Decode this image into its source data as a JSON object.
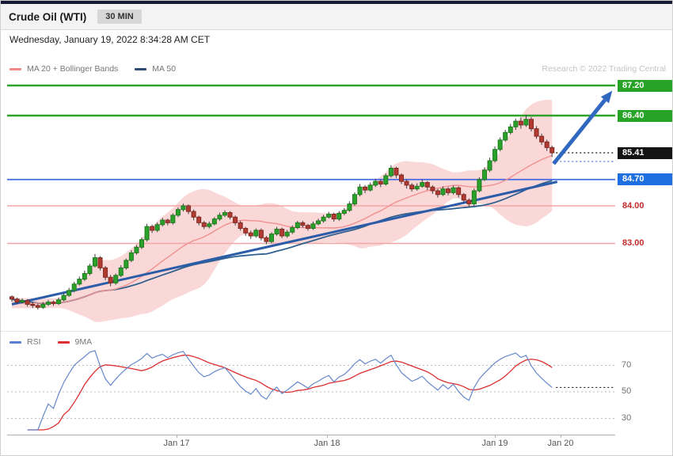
{
  "header": {
    "title": "Crude Oil (WTI)",
    "timeframe_badge": "30 MIN",
    "timestamp": "Wednesday, January 19, 2022 8:34:28 AM CET"
  },
  "legend": {
    "ma20_label": "MA 20 + Bollinger Bands",
    "ma50_label": "MA 50",
    "research_credit": "Research © 2022 Trading Central"
  },
  "rsi_legend": {
    "rsi_label": "RSI",
    "ma9_label": "9MA"
  },
  "colors": {
    "up_candle": "#2aa12a",
    "down_candle": "#b23a30",
    "bollinger_band": "#f69e9e",
    "ma20": "#f09090",
    "ma50": "#30608f",
    "trendline": "#2b5ca8",
    "arrow": "#3068c0",
    "resistance_green": "#2da32d",
    "pivot_blue": "#4169e1",
    "support_pink": "#f2a6a6"
  },
  "chart_data": {
    "type": "candlestick",
    "title": "Crude Oil (WTI)",
    "interval": "30 MIN",
    "current_price": 85.41,
    "x_axis_labels": [
      "Jan 17",
      "Jan 18",
      "Jan 19",
      "Jan 20"
    ],
    "y_axis_visible_range": [
      81.0,
      87.5
    ],
    "rsi_levels": [
      70,
      50,
      30
    ],
    "indicators": {
      "ma": 20,
      "bollinger_stddev": 2,
      "ma_slow": 50,
      "rsi": 14,
      "rsi_ma": 9
    },
    "levels": [
      {
        "price": 87.2,
        "label": "87.20",
        "style": "green-badge",
        "line_color": "#2da32d"
      },
      {
        "price": 86.4,
        "label": "86.40",
        "style": "green-badge",
        "line_color": "#2da32d"
      },
      {
        "price": 85.41,
        "label": "85.41",
        "style": "black-badge",
        "line_color": null
      },
      {
        "price": 84.7,
        "label": "84.70",
        "style": "blue-badge",
        "line_color": "#4169e1"
      },
      {
        "price": 84.0,
        "label": "84.00",
        "style": "red-text",
        "line_color": "#f2a6a6"
      },
      {
        "price": 83.0,
        "label": "83.00",
        "style": "red-text",
        "line_color": "#f2a6a6"
      }
    ],
    "trendline": {
      "start_index": 0,
      "start_price": 81.38,
      "end_index": 105,
      "end_price": 84.64
    },
    "arrow": {
      "from_index": 104.3,
      "from_price": 85.12,
      "to_index": 115.6,
      "to_price": 87.06
    },
    "projection_dotted_price": 85.18,
    "candles": [
      [
        81.58,
        81.62,
        81.45,
        81.52
      ],
      [
        81.52,
        81.56,
        81.38,
        81.44
      ],
      [
        81.44,
        81.54,
        81.4,
        81.48
      ],
      [
        81.48,
        81.52,
        81.32,
        81.38
      ],
      [
        81.38,
        81.44,
        81.28,
        81.35
      ],
      [
        81.35,
        81.4,
        81.24,
        81.3
      ],
      [
        81.3,
        81.44,
        81.26,
        81.38
      ],
      [
        81.38,
        81.5,
        81.34,
        81.44
      ],
      [
        81.44,
        81.48,
        81.34,
        81.4
      ],
      [
        81.4,
        81.56,
        81.36,
        81.5
      ],
      [
        81.5,
        81.68,
        81.46,
        81.62
      ],
      [
        81.62,
        81.82,
        81.58,
        81.75
      ],
      [
        81.75,
        81.98,
        81.7,
        81.92
      ],
      [
        81.92,
        82.12,
        81.88,
        82.05
      ],
      [
        82.05,
        82.28,
        82.0,
        82.2
      ],
      [
        82.2,
        82.46,
        82.15,
        82.4
      ],
      [
        82.4,
        82.72,
        82.36,
        82.62
      ],
      [
        82.62,
        82.66,
        82.28,
        82.35
      ],
      [
        82.35,
        82.4,
        82.02,
        82.1
      ],
      [
        82.1,
        82.16,
        81.86,
        81.95
      ],
      [
        81.95,
        82.2,
        81.9,
        82.15
      ],
      [
        82.15,
        82.42,
        82.1,
        82.35
      ],
      [
        82.35,
        82.6,
        82.3,
        82.55
      ],
      [
        82.55,
        82.82,
        82.5,
        82.75
      ],
      [
        82.75,
        82.96,
        82.7,
        82.9
      ],
      [
        82.9,
        83.16,
        82.85,
        83.1
      ],
      [
        83.1,
        83.52,
        83.05,
        83.45
      ],
      [
        83.45,
        83.5,
        83.28,
        83.35
      ],
      [
        83.35,
        83.56,
        83.3,
        83.5
      ],
      [
        83.5,
        83.68,
        83.45,
        83.62
      ],
      [
        83.62,
        83.66,
        83.48,
        83.55
      ],
      [
        83.55,
        83.8,
        83.5,
        83.75
      ],
      [
        83.75,
        83.96,
        83.7,
        83.9
      ],
      [
        83.9,
        84.06,
        83.85,
        84.0
      ],
      [
        84.0,
        84.04,
        83.78,
        83.85
      ],
      [
        83.85,
        83.9,
        83.62,
        83.7
      ],
      [
        83.7,
        83.74,
        83.48,
        83.55
      ],
      [
        83.55,
        83.6,
        83.38,
        83.45
      ],
      [
        83.45,
        83.58,
        83.4,
        83.52
      ],
      [
        83.52,
        83.7,
        83.48,
        83.65
      ],
      [
        83.65,
        83.82,
        83.6,
        83.75
      ],
      [
        83.75,
        83.88,
        83.7,
        83.82
      ],
      [
        83.82,
        83.86,
        83.64,
        83.7
      ],
      [
        83.7,
        83.74,
        83.48,
        83.55
      ],
      [
        83.55,
        83.6,
        83.34,
        83.4
      ],
      [
        83.4,
        83.44,
        83.2,
        83.28
      ],
      [
        83.28,
        83.34,
        83.12,
        83.2
      ],
      [
        83.2,
        83.4,
        83.15,
        83.35
      ],
      [
        83.35,
        83.4,
        83.08,
        83.15
      ],
      [
        83.15,
        83.2,
        82.98,
        83.05
      ],
      [
        83.05,
        83.3,
        83.0,
        83.25
      ],
      [
        83.25,
        83.44,
        83.2,
        83.38
      ],
      [
        83.38,
        83.42,
        83.14,
        83.2
      ],
      [
        83.2,
        83.36,
        83.15,
        83.3
      ],
      [
        83.3,
        83.48,
        83.25,
        83.42
      ],
      [
        83.42,
        83.6,
        83.38,
        83.55
      ],
      [
        83.55,
        83.6,
        83.42,
        83.48
      ],
      [
        83.48,
        83.52,
        83.34,
        83.4
      ],
      [
        83.4,
        83.58,
        83.36,
        83.52
      ],
      [
        83.52,
        83.66,
        83.48,
        83.6
      ],
      [
        83.6,
        83.76,
        83.55,
        83.7
      ],
      [
        83.7,
        83.84,
        83.66,
        83.78
      ],
      [
        83.78,
        83.82,
        83.58,
        83.65
      ],
      [
        83.65,
        83.86,
        83.6,
        83.8
      ],
      [
        83.8,
        83.94,
        83.75,
        83.88
      ],
      [
        83.88,
        84.12,
        83.84,
        84.05
      ],
      [
        84.05,
        84.36,
        84.0,
        84.3
      ],
      [
        84.3,
        84.58,
        84.25,
        84.5
      ],
      [
        84.5,
        84.55,
        84.34,
        84.42
      ],
      [
        84.42,
        84.62,
        84.38,
        84.55
      ],
      [
        84.55,
        84.72,
        84.5,
        84.65
      ],
      [
        84.65,
        84.7,
        84.5,
        84.58
      ],
      [
        84.58,
        84.86,
        84.54,
        84.8
      ],
      [
        84.8,
        85.08,
        84.75,
        85.0
      ],
      [
        85.0,
        85.04,
        84.74,
        84.82
      ],
      [
        84.82,
        84.86,
        84.58,
        84.65
      ],
      [
        84.65,
        84.7,
        84.46,
        84.55
      ],
      [
        84.55,
        84.6,
        84.38,
        84.45
      ],
      [
        84.45,
        84.6,
        84.4,
        84.52
      ],
      [
        84.52,
        84.7,
        84.48,
        84.62
      ],
      [
        84.62,
        84.66,
        84.42,
        84.5
      ],
      [
        84.5,
        84.55,
        84.32,
        84.4
      ],
      [
        84.4,
        84.45,
        84.22,
        84.3
      ],
      [
        84.3,
        84.52,
        84.26,
        84.45
      ],
      [
        84.45,
        84.5,
        84.28,
        84.35
      ],
      [
        84.35,
        84.54,
        84.3,
        84.48
      ],
      [
        84.48,
        84.52,
        84.22,
        84.3
      ],
      [
        84.3,
        84.34,
        84.08,
        84.15
      ],
      [
        84.15,
        84.2,
        83.96,
        84.05
      ],
      [
        84.05,
        84.46,
        84.0,
        84.4
      ],
      [
        84.4,
        84.76,
        84.36,
        84.7
      ],
      [
        84.7,
        85.02,
        84.66,
        84.95
      ],
      [
        84.95,
        85.28,
        84.9,
        85.2
      ],
      [
        85.2,
        85.58,
        85.15,
        85.5
      ],
      [
        85.5,
        85.82,
        85.45,
        85.75
      ],
      [
        85.75,
        86.02,
        85.7,
        85.95
      ],
      [
        85.95,
        86.18,
        85.9,
        86.1
      ],
      [
        86.1,
        86.32,
        86.02,
        86.25
      ],
      [
        86.25,
        86.35,
        86.05,
        86.15
      ],
      [
        86.15,
        86.42,
        86.1,
        86.3
      ],
      [
        86.3,
        86.36,
        85.98,
        86.05
      ],
      [
        86.05,
        86.12,
        85.78,
        85.85
      ],
      [
        85.85,
        85.92,
        85.62,
        85.7
      ],
      [
        85.7,
        85.76,
        85.46,
        85.55
      ],
      [
        85.55,
        85.6,
        85.3,
        85.41
      ]
    ]
  }
}
